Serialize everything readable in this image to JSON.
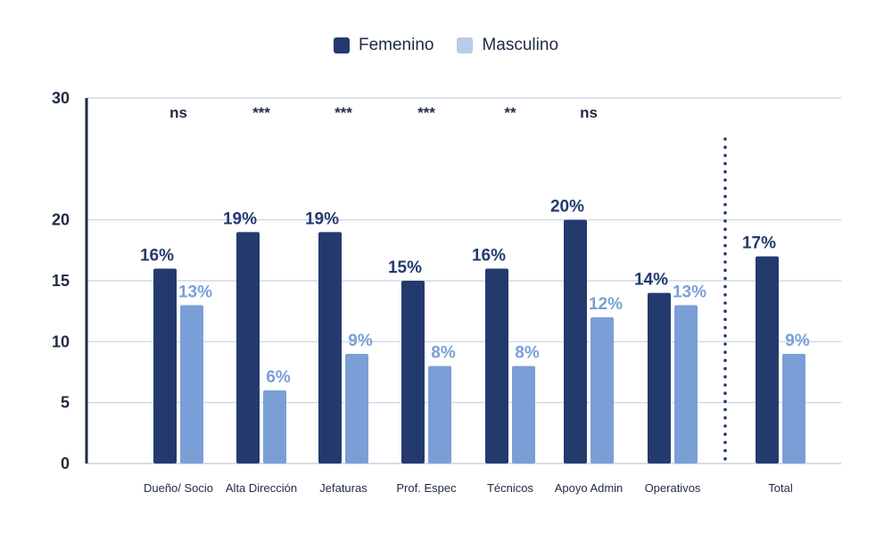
{
  "colors": {
    "femenino": "#243a6e",
    "masculino": "#7a9fd6",
    "legend_masculino": "#b8cbe8",
    "grid": "#c9cfe3",
    "axis": "#1f2a44"
  },
  "legend": [
    {
      "label": "Femenino",
      "color": "#243a6e"
    },
    {
      "label": "Masculino",
      "color": "#b8cbe8"
    }
  ],
  "chart_data": {
    "type": "bar",
    "ylim": [
      0,
      30
    ],
    "yticks": [
      0,
      5,
      10,
      15,
      20,
      30
    ],
    "grid": true,
    "legend_position": "top-center",
    "categories": [
      "Dueño/ Socio",
      "Alta Dirección",
      "Jefaturas",
      "Prof. Espec",
      "Técnicos",
      "Apoyo Admin",
      "Operativos",
      "Total"
    ],
    "significance": [
      "ns",
      "***",
      "***",
      "***",
      "**",
      "ns",
      "",
      ""
    ],
    "series": [
      {
        "name": "Femenino",
        "values": [
          16,
          19,
          19,
          15,
          16,
          20,
          14,
          17
        ],
        "labels": [
          "16%",
          "19%",
          "19%",
          "15%",
          "16%",
          "20%",
          "14%",
          "17%"
        ]
      },
      {
        "name": "Masculino",
        "values": [
          13,
          6,
          9,
          8,
          8,
          12,
          13,
          9
        ],
        "labels": [
          "13%",
          "6%",
          "9%",
          "8%",
          "8%",
          "12%",
          "13%",
          "9%"
        ]
      }
    ],
    "separator_before": "Total"
  }
}
